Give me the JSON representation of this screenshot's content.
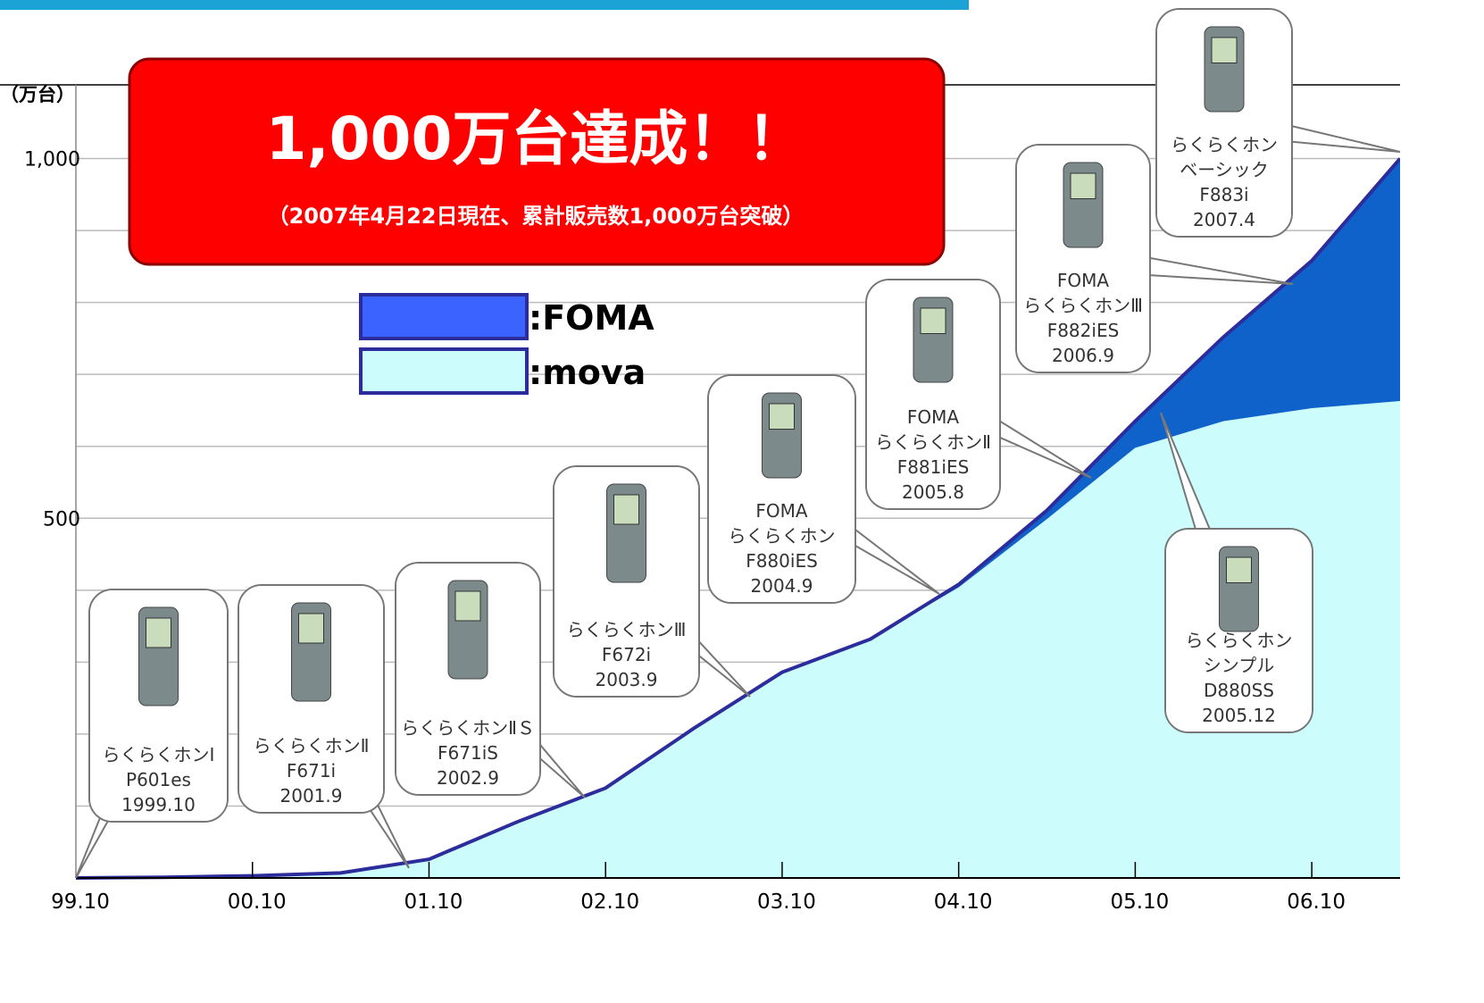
{
  "chart_data": {
    "type": "stacked_area",
    "y_unit_label": "（万台）",
    "title": "1,000万台達成！！",
    "subtitle": "（2007年4月22日現在、累計販売数1,000万台突破）",
    "categories": [
      "99.10",
      null,
      "00.10",
      null,
      "01.10",
      null,
      "02.10",
      null,
      "03.10",
      null,
      "04.10",
      null,
      "05.10",
      null,
      "06.10",
      null
    ],
    "series": [
      {
        "name": ":mova",
        "color": "#ccfcfc",
        "values": [
          0,
          1,
          3,
          7,
          26,
          78,
          125,
          208,
          286,
          332,
          404,
          499,
          598,
          635,
          653,
          663
        ]
      },
      {
        "name": ":FOMA",
        "color": "#0f62c9",
        "values": [
          0,
          0,
          0,
          0,
          0,
          0,
          0,
          0,
          0,
          0,
          4,
          12,
          37,
          117,
          205,
          337
        ]
      }
    ],
    "line_color": "#2c2c9c",
    "ylim": [
      0,
      1100
    ],
    "yticks": [
      500,
      {
        "value": 1000,
        "label": "1,000"
      }
    ],
    "minor_yticks": [
      100,
      200,
      300,
      400,
      600,
      700,
      800,
      900
    ],
    "grid": true,
    "callouts": [
      {
        "lines": [
          "らくらくホンⅠ",
          "P601es",
          "1999.10"
        ]
      },
      {
        "lines": [
          "らくらくホンⅡ",
          "F671i",
          "2001.9"
        ]
      },
      {
        "lines": [
          "らくらくホンⅡＳ",
          "F671iS",
          "2002.9"
        ]
      },
      {
        "lines": [
          "らくらくホンⅢ",
          "F672i",
          "2003.9"
        ]
      },
      {
        "lines": [
          "FOMA",
          "らくらくホン",
          "F880iES",
          "2004.9"
        ]
      },
      {
        "lines": [
          "FOMA",
          "らくらくホンⅡ",
          "F881iES",
          "2005.8"
        ]
      },
      {
        "lines": [
          "FOMA",
          "らくらくホンⅢ",
          "F882iES",
          "2006.9"
        ]
      },
      {
        "lines": [
          "らくらくホン",
          "ベーシック",
          "F883i",
          "2007.4"
        ]
      },
      {
        "lines": [
          "らくらくホン",
          "シンプル",
          "D880SS",
          "2005.12"
        ]
      }
    ]
  }
}
